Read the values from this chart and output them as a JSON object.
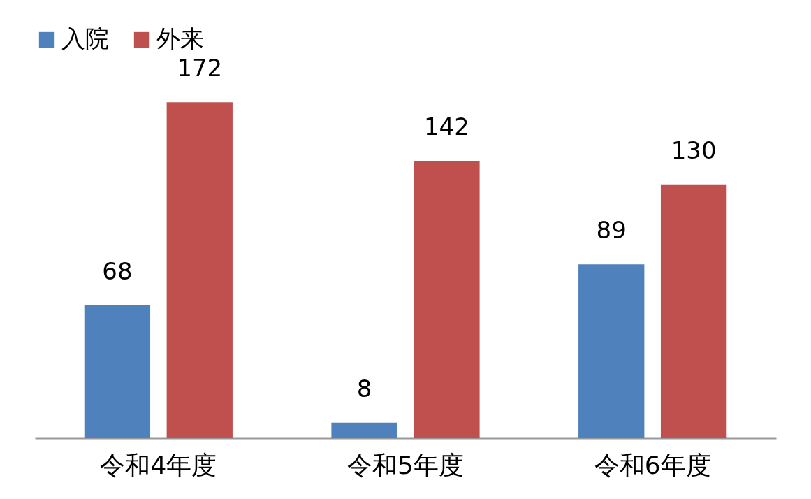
{
  "chart_data": {
    "type": "bar",
    "categories": [
      "令和4年度",
      "令和5年度",
      "令和6年度"
    ],
    "series": [
      {
        "name": "入院",
        "color": "#4f81bd",
        "values": [
          68,
          8,
          89
        ]
      },
      {
        "name": "外来",
        "color": "#c0504d",
        "values": [
          172,
          142,
          130
        ]
      }
    ],
    "data_labels": true,
    "legend": "top",
    "grid": false
  }
}
